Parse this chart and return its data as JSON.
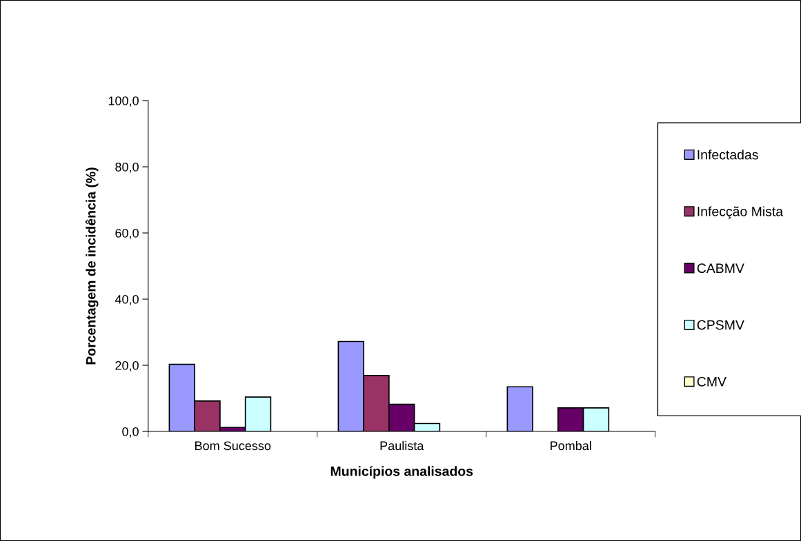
{
  "chart_data": {
    "type": "bar",
    "xlabel": "Municípios analisados",
    "ylabel": "Porcentagem de incidência (%)",
    "categories": [
      "Bom Sucesso",
      "Paulista",
      "Pombal"
    ],
    "series": [
      {
        "name": "Infectadas",
        "color": "#9999ff",
        "values": [
          20.3,
          27.2,
          13.5
        ]
      },
      {
        "name": "Infecção Mista",
        "color": "#993366",
        "values": [
          9.2,
          16.9,
          0
        ]
      },
      {
        "name": "CABMV",
        "color": "#660066",
        "values": [
          1.2,
          8.2,
          7.1
        ]
      },
      {
        "name": "CPSMV",
        "color": "#ccffff",
        "values": [
          10.4,
          2.4,
          7.1
        ]
      },
      {
        "name": "CMV",
        "color": "#ffffcc",
        "values": [
          0,
          0,
          0
        ]
      }
    ],
    "ylim": [
      0,
      100
    ],
    "yticks": [
      {
        "value": 0,
        "label": "0,0"
      },
      {
        "value": 20,
        "label": "20,0"
      },
      {
        "value": 40,
        "label": "40,0"
      },
      {
        "value": 60,
        "label": "60,0"
      },
      {
        "value": 80,
        "label": "80,0"
      },
      {
        "value": 100,
        "label": "100,0"
      }
    ],
    "grid": false,
    "legend": "right"
  }
}
